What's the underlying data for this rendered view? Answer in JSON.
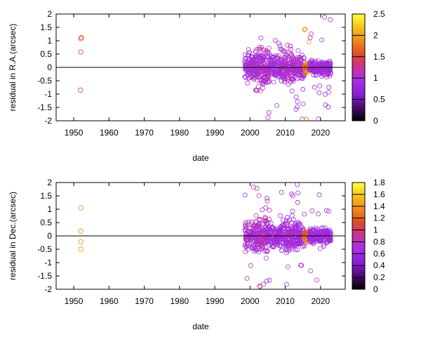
{
  "colors": {
    "palette_stops": [
      "#000000",
      "#4b0a6e",
      "#8a1fd6",
      "#a52fe6",
      "#c8329a",
      "#e04a28",
      "#f08a1c",
      "#f5c21a",
      "#ffff40"
    ],
    "zero_line": "#000000",
    "frame": "#000000"
  },
  "chart_data": [
    {
      "type": "scatter",
      "title": "",
      "xlabel": "date",
      "ylabel": "residual in R.A.(arcsec)",
      "xlim": [
        1945,
        2027
      ],
      "ylim": [
        -2,
        2
      ],
      "xticks": [
        "1950",
        "1960",
        "1970",
        "1980",
        "1990",
        "2000",
        "2010",
        "2020"
      ],
      "yticks": [
        "2",
        "1.5",
        "1",
        "0.5",
        "0",
        "-0.5",
        "-1",
        "-1.5",
        "-2"
      ],
      "colorbar": {
        "range": [
          0,
          2.5
        ],
        "ticks": [
          "2.5",
          "2",
          "1.5",
          "1",
          "0.5",
          "0"
        ]
      },
      "marker": "open circle",
      "zero_line": true,
      "points": [
        {
          "x": 1952.0,
          "y": 1.08,
          "c": 1.6
        },
        {
          "x": 1952.2,
          "y": 1.12,
          "c": 1.6
        },
        {
          "x": 1952.0,
          "y": 0.58,
          "c": 1.6
        },
        {
          "x": 1951.9,
          "y": -0.85,
          "c": 1.6
        }
      ],
      "clusters": [
        {
          "x_range": [
            1998.5,
            2001.5
          ],
          "y_spread": 0.55,
          "count": 90,
          "c_range": [
            0.7,
            1.15
          ]
        },
        {
          "x_range": [
            2001.5,
            2005.5
          ],
          "y_spread": 0.75,
          "count": 170,
          "c_range": [
            0.8,
            1.25
          ]
        },
        {
          "x_range": [
            2005.5,
            2008.5
          ],
          "y_spread": 0.45,
          "count": 90,
          "c_range": [
            0.8,
            1.1
          ]
        },
        {
          "x_range": [
            2008.5,
            2012.5
          ],
          "y_spread": 0.65,
          "count": 150,
          "c_range": [
            0.8,
            1.2
          ]
        },
        {
          "x_range": [
            2012.5,
            2015.5
          ],
          "y_spread": 0.45,
          "count": 110,
          "c_range": [
            0.8,
            1.2
          ]
        },
        {
          "x_range": [
            2015.3,
            2016.8
          ],
          "y_spread": 0.2,
          "count": 60,
          "c_range": [
            1.3,
            2.1
          ]
        },
        {
          "x_range": [
            2016.8,
            2023.0
          ],
          "y_spread": 0.3,
          "count": 200,
          "c_range": [
            0.6,
            1.1
          ]
        }
      ]
    },
    {
      "type": "scatter",
      "title": "",
      "xlabel": "date",
      "ylabel": "residual in Dec.(arcsec)",
      "xlim": [
        1945,
        2027
      ],
      "ylim": [
        -2,
        2
      ],
      "xticks": [
        "1950",
        "1960",
        "1970",
        "1980",
        "1990",
        "2000",
        "2010",
        "2020"
      ],
      "yticks": [
        "2",
        "1.5",
        "1",
        "0.5",
        "0",
        "-0.5",
        "-1",
        "-1.5",
        "-2"
      ],
      "colorbar": {
        "range": [
          0,
          1.8
        ],
        "ticks": [
          "1.8",
          "1.6",
          "1.4",
          "1.2",
          "1",
          "0.8",
          "0.6",
          "0.4",
          "0.2",
          "0"
        ]
      },
      "marker": "open circle",
      "zero_line": true,
      "points": [
        {
          "x": 1952.0,
          "y": 1.05,
          "c": 1.4
        },
        {
          "x": 1952.0,
          "y": 0.18,
          "c": 1.4
        },
        {
          "x": 1952.0,
          "y": -0.22,
          "c": 1.4
        },
        {
          "x": 1952.0,
          "y": -0.5,
          "c": 1.4
        }
      ],
      "clusters": [
        {
          "x_range": [
            1998.5,
            2001.5
          ],
          "y_spread": 0.55,
          "count": 90,
          "c_range": [
            0.5,
            0.9
          ]
        },
        {
          "x_range": [
            2001.5,
            2005.5
          ],
          "y_spread": 0.75,
          "count": 170,
          "c_range": [
            0.55,
            0.95
          ]
        },
        {
          "x_range": [
            2005.5,
            2008.5
          ],
          "y_spread": 0.45,
          "count": 90,
          "c_range": [
            0.5,
            0.8
          ]
        },
        {
          "x_range": [
            2008.5,
            2012.5
          ],
          "y_spread": 0.6,
          "count": 150,
          "c_range": [
            0.5,
            0.85
          ]
        },
        {
          "x_range": [
            2012.5,
            2015.5
          ],
          "y_spread": 0.45,
          "count": 110,
          "c_range": [
            0.5,
            0.85
          ]
        },
        {
          "x_range": [
            2015.3,
            2016.8
          ],
          "y_spread": 0.2,
          "count": 60,
          "c_range": [
            1.0,
            1.5
          ]
        },
        {
          "x_range": [
            2016.8,
            2023.0
          ],
          "y_spread": 0.3,
          "count": 200,
          "c_range": [
            0.5,
            0.8
          ]
        }
      ]
    }
  ]
}
